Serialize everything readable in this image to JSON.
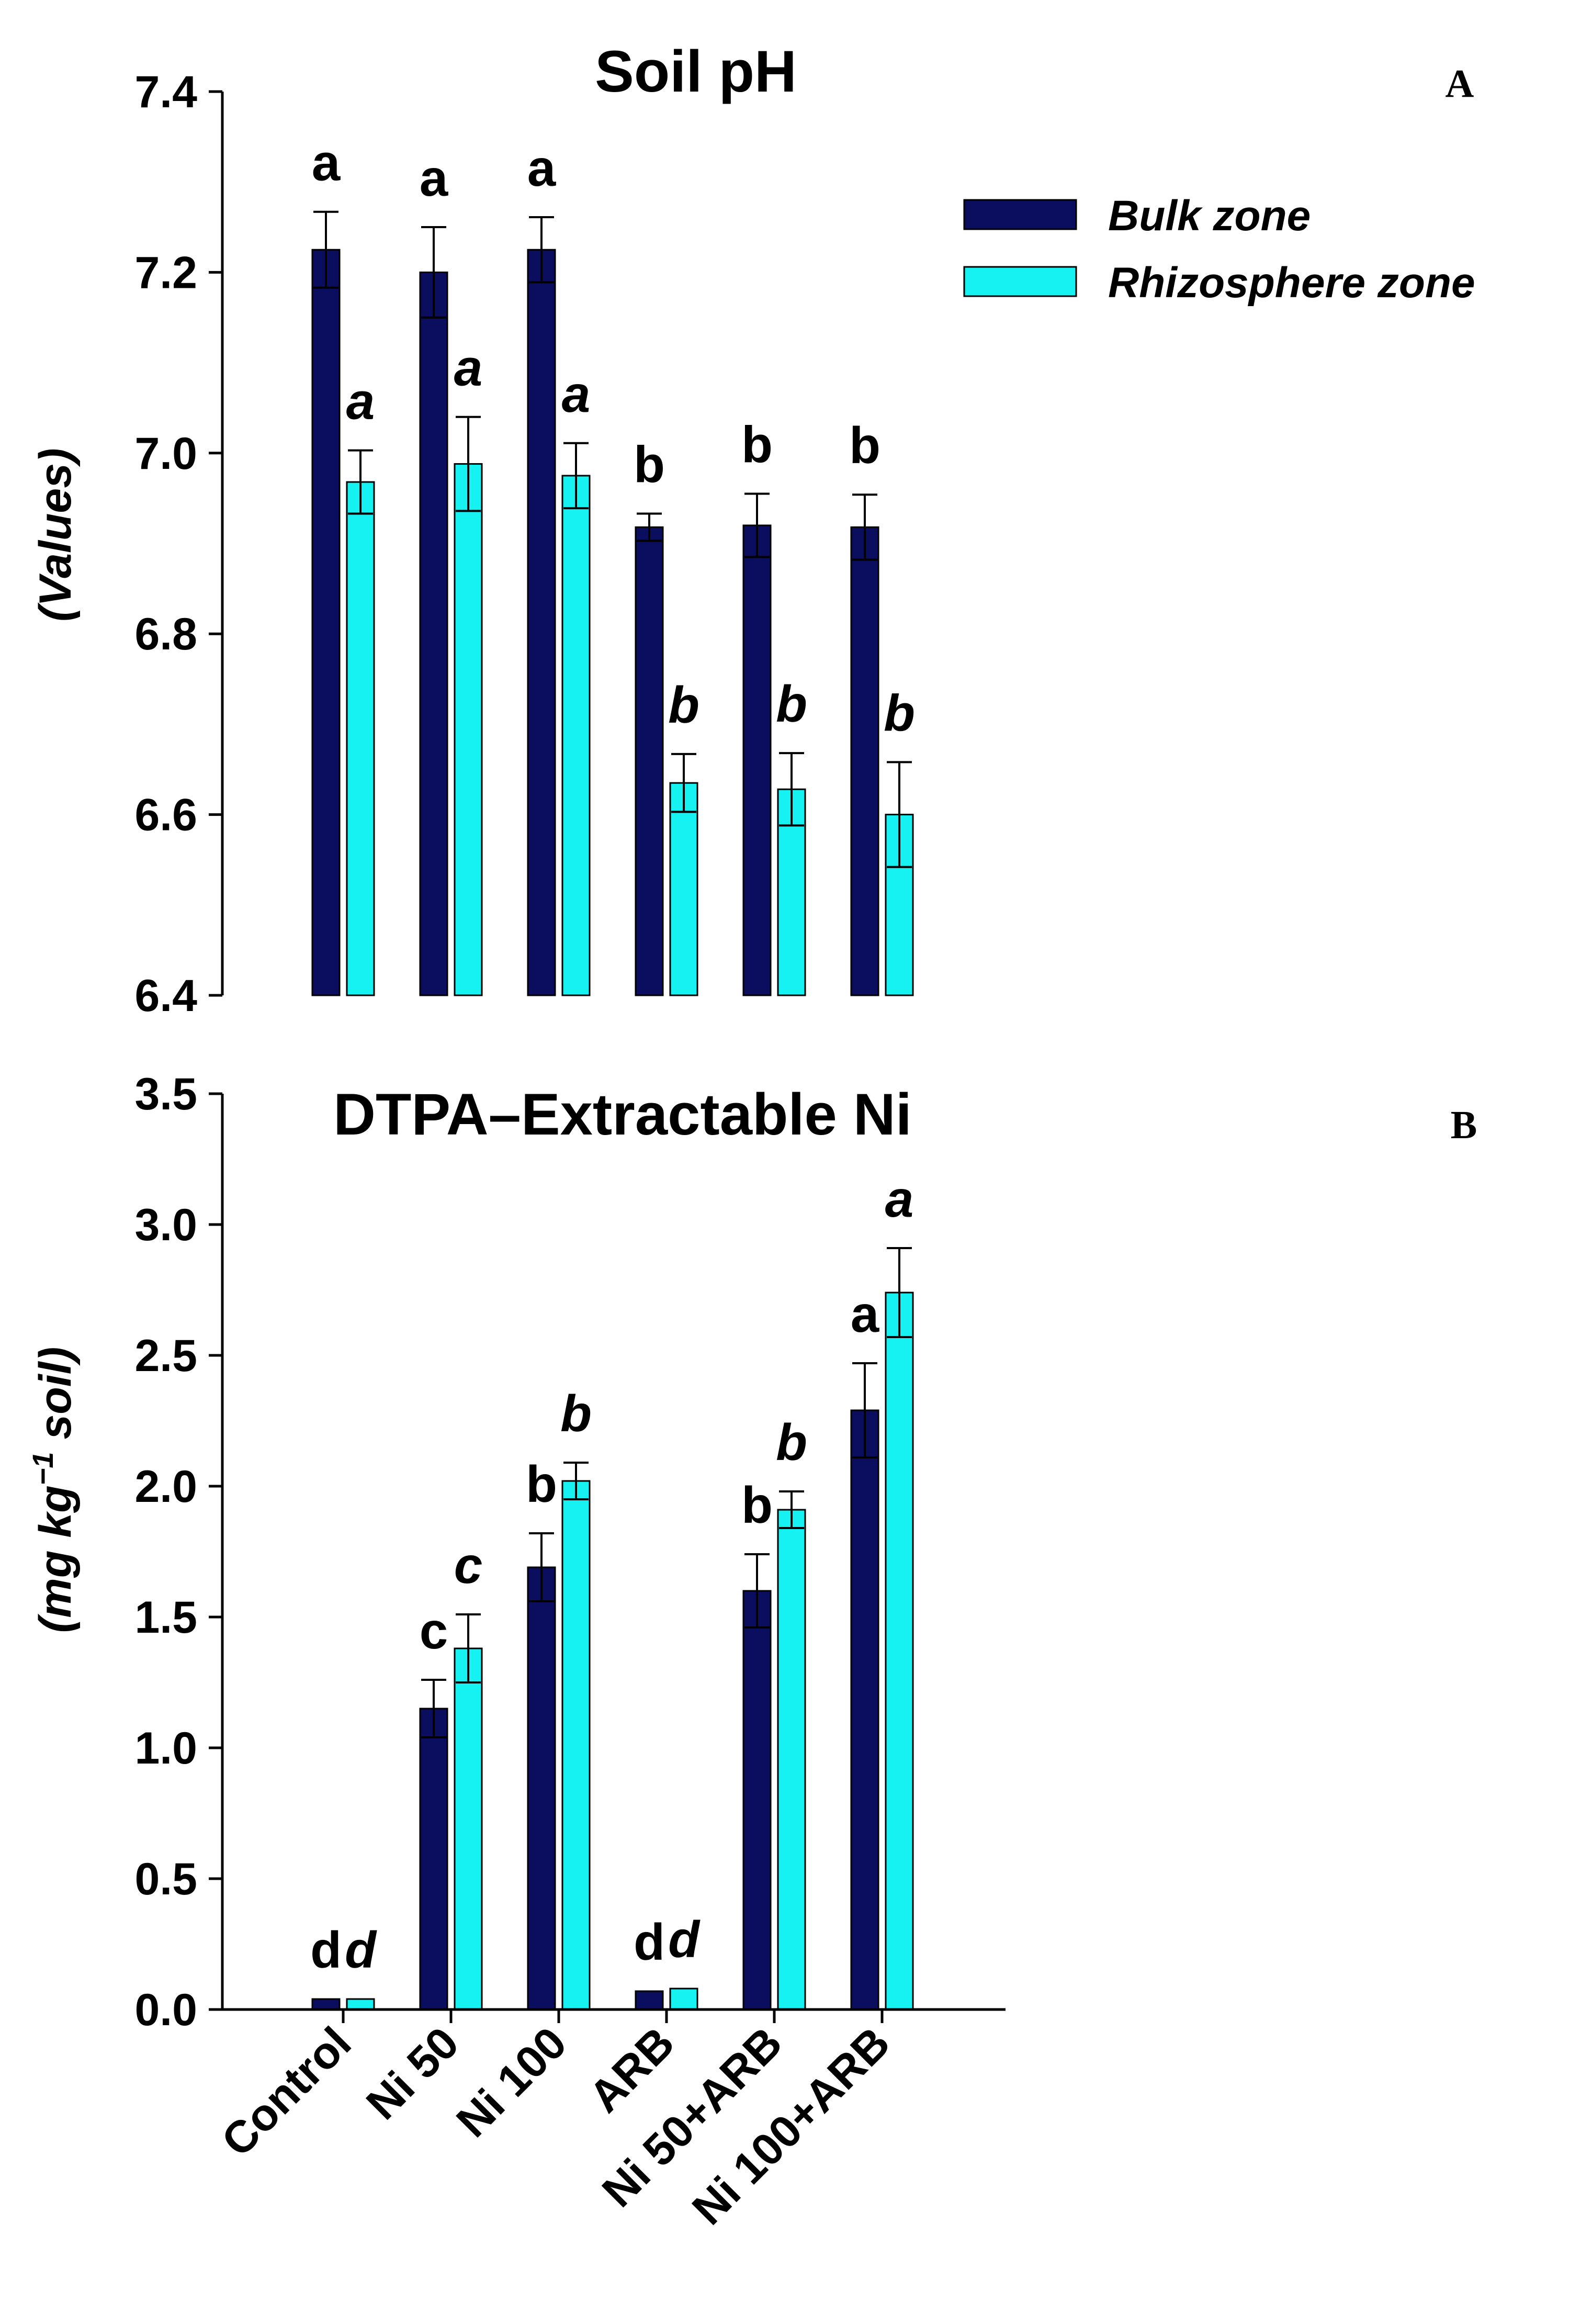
{
  "chart_data": [
    {
      "type": "bar",
      "panel": "A",
      "title": "Soil pH",
      "ylabel": "(Values)",
      "ylim": [
        6.4,
        7.4
      ],
      "yticks": [
        "6.4",
        "6.6",
        "6.8",
        "7.0",
        "7.2",
        "7.4"
      ],
      "categories": [
        "Control",
        "Ni 50",
        "Ni 100",
        "ARB",
        "Ni 50+ARB",
        "Ni 100+ARB"
      ],
      "legend_position": "top-right",
      "series": [
        {
          "name": "Bulk zone",
          "color": "#0b0e5e",
          "values": [
            7.225,
            7.2,
            7.225,
            6.918,
            6.92,
            6.918
          ],
          "errors": [
            0.042,
            0.05,
            0.036,
            0.015,
            0.035,
            0.036
          ],
          "letters": [
            "a",
            "a",
            "a",
            "b",
            "b",
            "b"
          ]
        },
        {
          "name": "Rhizosphere zone",
          "color": "#16f2f2",
          "values": [
            6.968,
            6.988,
            6.975,
            6.635,
            6.628,
            6.6
          ],
          "errors": [
            0.035,
            0.052,
            0.036,
            0.032,
            0.04,
            0.058
          ],
          "letters": [
            "a",
            "a",
            "a",
            "b",
            "b",
            "b"
          ]
        }
      ]
    },
    {
      "type": "bar",
      "panel": "B",
      "title": "DTPA–Extractable Ni",
      "ylabel": "(mg kg",
      "ylabel_sup": "−1",
      "ylabel_tail": " soil)",
      "ylim": [
        0,
        3.5
      ],
      "yticks": [
        "0.0",
        "0.5",
        "1.0",
        "1.5",
        "2.0",
        "2.5",
        "3.0",
        "3.5"
      ],
      "categories": [
        "Control",
        "Ni 50",
        "Ni 100",
        "ARB",
        "Ni 50+ARB",
        "Ni 100+ARB"
      ],
      "series": [
        {
          "name": "Bulk zone",
          "color": "#0b0e5e",
          "values": [
            0.04,
            1.15,
            1.69,
            0.07,
            1.6,
            2.29
          ],
          "errors": [
            0.0,
            0.11,
            0.13,
            0.0,
            0.14,
            0.18
          ],
          "letters": [
            "d",
            "c",
            "b",
            "d",
            "b",
            "a"
          ]
        },
        {
          "name": "Rhizosphere zone",
          "color": "#16f2f2",
          "values": [
            0.04,
            1.38,
            2.02,
            0.08,
            1.91,
            2.74
          ],
          "errors": [
            0.0,
            0.13,
            0.07,
            0.0,
            0.07,
            0.17
          ],
          "letters": [
            "d",
            "c",
            "b",
            "d",
            "b",
            "a"
          ]
        }
      ]
    }
  ]
}
